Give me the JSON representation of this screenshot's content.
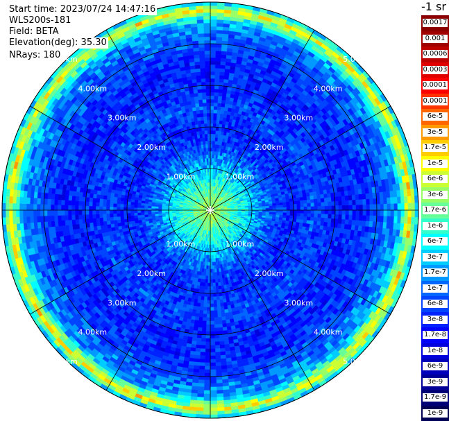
{
  "header": {
    "start_time": "Start time: 2023/07/24 14:47:16",
    "instrument": "WLS200s-181",
    "field": "Field: BETA",
    "elevation": "Elevation(deg): 35.30",
    "nrays": "NRays: 180"
  },
  "colorbar": {
    "unit": "-1 sr",
    "levels": [
      {
        "label": "0.0017",
        "color": "#8b0000"
      },
      {
        "label": "0.001",
        "color": "#a10000"
      },
      {
        "label": "0.0006",
        "color": "#bd0000"
      },
      {
        "label": "0.0003",
        "color": "#e00000"
      },
      {
        "label": "0.00017",
        "color": "#ff0000"
      },
      {
        "label": "0.0001",
        "color": "#ff3300"
      },
      {
        "label": "6e-5",
        "color": "#ff6600"
      },
      {
        "label": "3e-5",
        "color": "#ff9900"
      },
      {
        "label": "1.7e-5",
        "color": "#ffcc00"
      },
      {
        "label": "1e-5",
        "color": "#ffff00"
      },
      {
        "label": "6e-6",
        "color": "#ccff33"
      },
      {
        "label": "3e-6",
        "color": "#99ff66"
      },
      {
        "label": "1.7e-6",
        "color": "#66ff99"
      },
      {
        "label": "1e-6",
        "color": "#33ffcc"
      },
      {
        "label": "6e-7",
        "color": "#00ffff"
      },
      {
        "label": "3e-7",
        "color": "#00ccff"
      },
      {
        "label": "1.7e-7",
        "color": "#0099ff"
      },
      {
        "label": "1e-7",
        "color": "#0066ff"
      },
      {
        "label": "6e-8",
        "color": "#0044ff"
      },
      {
        "label": "3e-8",
        "color": "#0022ff"
      },
      {
        "label": "1.7e-8",
        "color": "#0000ff"
      },
      {
        "label": "1e-8",
        "color": "#0000dd"
      },
      {
        "label": "6e-9",
        "color": "#0000bb"
      },
      {
        "label": "3e-9",
        "color": "#000099"
      },
      {
        "label": "1.7e-9",
        "color": "#000077"
      },
      {
        "label": "1e-9",
        "color": "#000055"
      }
    ]
  },
  "chart_data": {
    "type": "heatmap",
    "projection": "polar (PPI)",
    "title": "",
    "range_rings_km": [
      "1.00km",
      "2.00km",
      "3.00km",
      "4.00km",
      "5.00km"
    ],
    "max_range_km": 5.0,
    "spokes_deg": [
      0,
      30,
      60,
      90,
      120,
      150,
      180,
      210,
      240,
      270,
      300,
      330
    ],
    "profile": {
      "range_km": [
        0.2,
        1.0,
        1.5,
        2.0,
        2.5,
        3.0,
        3.5,
        4.0,
        4.5,
        4.8,
        5.0
      ],
      "beta_sr": [
        3e-06,
        3e-07,
        6e-08,
        3e-08,
        6e-08,
        3e-08,
        3e-08,
        6e-08,
        1.7e-07,
        1e-05,
        1.7e-07
      ]
    }
  }
}
